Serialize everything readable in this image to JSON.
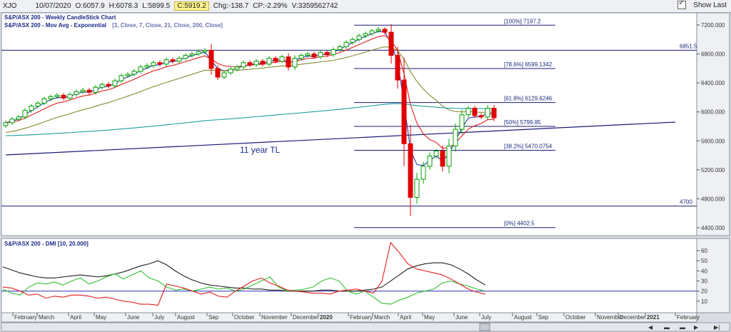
{
  "toolbar": {
    "symbol": "XJO",
    "date": "10/07/2020",
    "open": "O:6057.9",
    "high": "H:6078.3",
    "low": "L:5899.5",
    "close": "C:5919.2",
    "change": "Chg:-138.7",
    "change_pct": "CP:-2.29%",
    "volume": "V:3359562742",
    "show_last": "Show Last"
  },
  "colors": {
    "up": "#00a000",
    "down": "#e00000",
    "ema3": "#2b3aa8",
    "ema7": "#e02020",
    "ema21": "#8a8a30",
    "ema200": "#20a0a0",
    "adx": "#202020",
    "pdi": "#30c030",
    "mdi": "#e02020",
    "line": "#1a1a7a"
  },
  "chart_data": [
    {
      "type": "candlestick",
      "title": "S&P/ASX 200 - Weekly CandleStick Chart",
      "subtitle_name": "S&P/ASX 200 - Mov Avg - Exponential",
      "subtitle_params": "[3, Close, 7, Close, 21, Close, 200, Close]",
      "ylim": [
        4300,
        7300
      ],
      "y_ticks": [
        "7200.000",
        "6800.000",
        "6400.000",
        "6000.000",
        "5600.000",
        "5200.000",
        "4800.000",
        "4400.000"
      ],
      "x_labels": [
        "February",
        "March",
        "April",
        "May",
        "June",
        "July",
        "August",
        "Sep",
        "October",
        "November",
        "December",
        "2020",
        "February",
        "March",
        "April",
        "May",
        "June",
        "July",
        "August",
        "Sep",
        "October",
        "November",
        "December",
        "2021",
        "February"
      ],
      "closes": [
        5850,
        5900,
        5930,
        6020,
        6080,
        6120,
        6180,
        6210,
        6230,
        6190,
        6240,
        6280,
        6300,
        6270,
        6340,
        6380,
        6360,
        6430,
        6500,
        6520,
        6560,
        6620,
        6640,
        6680,
        6660,
        6720,
        6700,
        6740,
        6780,
        6800,
        6830,
        6850,
        6600,
        6480,
        6540,
        6590,
        6620,
        6680,
        6650,
        6700,
        6660,
        6740,
        6700,
        6760,
        6620,
        6740,
        6780,
        6800,
        6760,
        6820,
        6790,
        6860,
        6900,
        6960,
        7000,
        7050,
        7080,
        7120,
        7140,
        7100,
        6780,
        6440,
        5560,
        4820,
        5070,
        5250,
        5390,
        5460,
        5250,
        5530,
        5760,
        5960,
        6050,
        5950,
        5930,
        6050,
        5919
      ],
      "fib_levels": [
        {
          "label": "[100%] 7197.2",
          "value": 7197.2
        },
        {
          "label": "[78.6%] 6599.1342",
          "value": 6599.1342
        },
        {
          "label": "[61.8%] 6129.6246",
          "value": 6129.6246
        },
        {
          "label": "[50%] 5799.85",
          "value": 5799.85
        },
        {
          "label": "[38.2%] 5470.0754",
          "value": 5470.0754
        },
        {
          "label": "[0%] 4402.5",
          "value": 4402.5
        }
      ],
      "horizontal_lines": [
        {
          "label": "6851.5",
          "value": 6851.5
        },
        {
          "label": "4700",
          "value": 4700
        }
      ],
      "trendline_label": "11 year TL"
    },
    {
      "type": "line",
      "title": "S&P/ASX 200 - DMI [10, 20.000]",
      "ylim": [
        0,
        65
      ],
      "y_ticks": [
        "60",
        "50",
        "40",
        "30",
        "20",
        "10"
      ],
      "threshold": 20,
      "series": [
        {
          "key": "adx",
          "values": [
            44,
            41,
            38,
            36,
            34,
            33,
            33,
            34,
            35,
            36,
            35,
            34,
            35,
            37,
            39,
            42,
            45,
            47,
            50,
            46,
            40,
            35,
            31,
            28,
            26,
            25,
            24,
            23,
            23,
            22,
            22,
            21,
            21,
            20,
            20,
            20,
            20,
            21,
            21,
            20,
            20,
            20,
            21,
            22,
            24,
            30,
            36,
            42,
            45,
            47,
            48,
            48,
            46,
            42,
            37,
            31,
            26
          ]
        },
        {
          "key": "pdi",
          "values": [
            22,
            18,
            16,
            24,
            28,
            27,
            29,
            26,
            30,
            33,
            27,
            30,
            34,
            37,
            32,
            36,
            40,
            33,
            30,
            24,
            21,
            22,
            20,
            22,
            24,
            22,
            23,
            20,
            22,
            26,
            30,
            34,
            24,
            20,
            21,
            22,
            24,
            30,
            33,
            30,
            20,
            17,
            20,
            14,
            8,
            7,
            11,
            14,
            18,
            20,
            22,
            28,
            30,
            27,
            25,
            22,
            20
          ]
        },
        {
          "key": "mdi",
          "values": [
            24,
            23,
            20,
            16,
            17,
            13,
            15,
            14,
            16,
            16,
            15,
            13,
            14,
            12,
            10,
            9,
            7,
            7,
            6,
            27,
            25,
            23,
            20,
            17,
            19,
            15,
            14,
            20,
            25,
            30,
            33,
            28,
            25,
            21,
            20,
            19,
            18,
            18,
            17,
            20,
            21,
            22,
            20,
            18,
            30,
            68,
            58,
            47,
            42,
            40,
            38,
            36,
            32,
            27,
            22,
            19,
            17
          ]
        }
      ]
    }
  ]
}
